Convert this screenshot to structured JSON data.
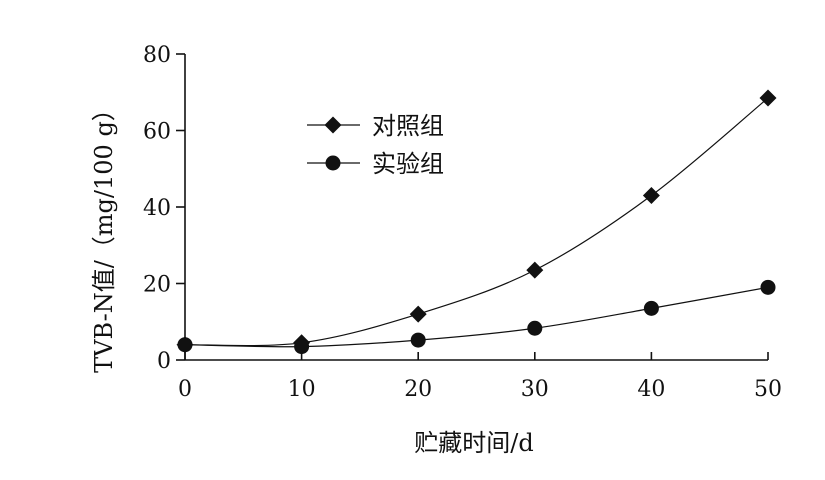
{
  "chart_data": {
    "type": "line",
    "xlabel": "贮藏时间/d",
    "ylabel": "TVB-N值/（mg/100 g）",
    "xlim": [
      0,
      50
    ],
    "ylim": [
      0,
      80
    ],
    "x_ticks": [
      0,
      10,
      20,
      30,
      40,
      50
    ],
    "y_ticks": [
      0,
      20,
      40,
      60,
      80
    ],
    "grid": false,
    "legend_position": "upper-left",
    "series": [
      {
        "name": "对照组",
        "marker": "diamond",
        "color": "#111111",
        "x": [
          0,
          10,
          20,
          30,
          40,
          50
        ],
        "y": [
          4.0,
          4.5,
          12.0,
          23.5,
          43.0,
          68.5
        ]
      },
      {
        "name": "实验组",
        "marker": "circle",
        "color": "#111111",
        "x": [
          0,
          10,
          20,
          30,
          40,
          50
        ],
        "y": [
          4.0,
          3.5,
          5.2,
          8.3,
          13.5,
          19.0
        ]
      }
    ]
  }
}
